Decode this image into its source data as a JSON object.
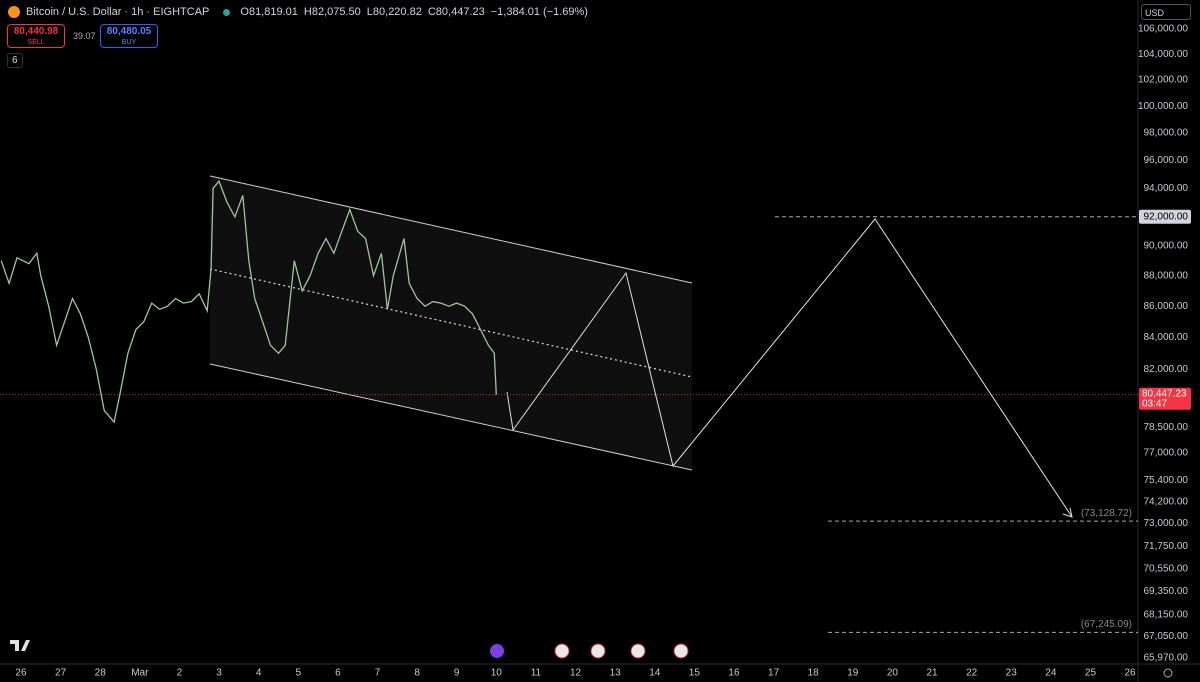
{
  "header": {
    "symbol": "Bitcoin / U.S. Dollar · 1h · EIGHTCAP",
    "open": "O81,819.01",
    "high": "H82,075.50",
    "low": "L80,220.82",
    "close": "C80,447.23",
    "change": "−1,384.01 (−1.69%)",
    "sell_price": "80,440.98",
    "sell": "SELL",
    "spread": "39.07",
    "buy_price": "80,480.05",
    "buy": "BUY",
    "indicators": "6",
    "currency": "USD"
  },
  "chart_data": {
    "type": "line",
    "log": true,
    "grid": false,
    "color": "#9cc79a",
    "x": [
      -0.5,
      -0.3,
      -0.1,
      0.2,
      0.4,
      0.5,
      0.7,
      0.9,
      1.1,
      1.3,
      1.5,
      1.7,
      1.9,
      2.1,
      2.35,
      2.5,
      2.7,
      2.9,
      3.1,
      3.3,
      3.5,
      3.7,
      3.9,
      4.1,
      4.3,
      4.5,
      4.7,
      4.8,
      4.85,
      5.0,
      5.2,
      5.4,
      5.6,
      5.75,
      5.9,
      6.1,
      6.3,
      6.5,
      6.67,
      6.9,
      7.1,
      7.3,
      7.5,
      7.7,
      7.9,
      8.1,
      8.3,
      8.5,
      8.7,
      8.9,
      9.1,
      9.25,
      9.4,
      9.67,
      9.8,
      10.0,
      10.2,
      10.4,
      10.6,
      10.8,
      11.0,
      11.2,
      11.4,
      11.6,
      11.8,
      11.95,
      12.0
    ],
    "values": [
      89000,
      87500,
      89200,
      88800,
      89500,
      88000,
      86000,
      83500,
      85000,
      86500,
      85500,
      84000,
      82000,
      79500,
      78800,
      80500,
      83000,
      84500,
      85000,
      86200,
      85800,
      86000,
      86500,
      86200,
      86300,
      86800,
      85700,
      88500,
      94000,
      94500,
      93000,
      92000,
      93500,
      89000,
      86500,
      85000,
      83500,
      83000,
      83500,
      89000,
      87000,
      88000,
      89500,
      90500,
      89500,
      91000,
      92500,
      91000,
      90500,
      88000,
      89500,
      85800,
      88000,
      90500,
      87500,
      86500,
      86000,
      86300,
      86200,
      86000,
      86200,
      86000,
      85500,
      84500,
      83500,
      83000,
      80447.23
    ],
    "ylim": [
      65660,
      108340
    ],
    "yticks": [
      {
        "value": 106000,
        "label": "106,000.00"
      },
      {
        "value": 104000,
        "label": "104,000.00"
      },
      {
        "value": 102000,
        "label": "102,000.00"
      },
      {
        "value": 100000,
        "label": "100,000.00"
      },
      {
        "value": 98000,
        "label": "98,000.00"
      },
      {
        "value": 96000,
        "label": "96,000.00"
      },
      {
        "value": 94000,
        "label": "94,000.00"
      },
      {
        "value": 90000,
        "label": "90,000.00"
      },
      {
        "value": 88000,
        "label": "88,000.00"
      },
      {
        "value": 86000,
        "label": "86,000.00"
      },
      {
        "value": 84000,
        "label": "84,000.00"
      },
      {
        "value": 82000,
        "label": "82,000.00"
      },
      {
        "value": 78500,
        "label": "78,500.00"
      },
      {
        "value": 77000,
        "label": "77,000.00"
      },
      {
        "value": 75400,
        "label": "75,400.00"
      },
      {
        "value": 74200,
        "label": "74,200.00"
      },
      {
        "value": 73000,
        "label": "73,000.00"
      },
      {
        "value": 71750,
        "label": "71,750.00"
      },
      {
        "value": 70550,
        "label": "70,550.00"
      },
      {
        "value": 69350,
        "label": "69,350.00"
      },
      {
        "value": 68150,
        "label": "68,150.00"
      },
      {
        "value": 67050,
        "label": "67,050.00"
      },
      {
        "value": 65970,
        "label": "65,970.00"
      }
    ],
    "xlim": [
      -0.53,
      28.2
    ],
    "xticks": [
      {
        "value": 0,
        "label": "26"
      },
      {
        "value": 1,
        "label": "27"
      },
      {
        "value": 2,
        "label": "28"
      },
      {
        "value": 3,
        "label": "Mar"
      },
      {
        "value": 4,
        "label": "2"
      },
      {
        "value": 5,
        "label": "3"
      },
      {
        "value": 6,
        "label": "4"
      },
      {
        "value": 7,
        "label": "5"
      },
      {
        "value": 8,
        "label": "6"
      },
      {
        "value": 9,
        "label": "7"
      },
      {
        "value": 10,
        "label": "8"
      },
      {
        "value": 11,
        "label": "9"
      },
      {
        "value": 12,
        "label": "10"
      },
      {
        "value": 13,
        "label": "11"
      },
      {
        "value": 14,
        "label": "12"
      },
      {
        "value": 15,
        "label": "13"
      },
      {
        "value": 16,
        "label": "14"
      },
      {
        "value": 17,
        "label": "15"
      },
      {
        "value": 18,
        "label": "16"
      },
      {
        "value": 19,
        "label": "17"
      },
      {
        "value": 20,
        "label": "18"
      },
      {
        "value": 21,
        "label": "19"
      },
      {
        "value": 22,
        "label": "20"
      },
      {
        "value": 23,
        "label": "21"
      },
      {
        "value": 24,
        "label": "22"
      },
      {
        "value": 25,
        "label": "23"
      },
      {
        "value": 26,
        "label": "24"
      },
      {
        "value": 27,
        "label": "25"
      },
      {
        "value": 28,
        "label": "26"
      }
    ],
    "levels": [
      {
        "value": 80447.23,
        "label": "80,447.23",
        "countdown": "03:47"
      },
      {
        "value": 92000,
        "label": "92,000.00"
      },
      {
        "value": 73128.72,
        "label": "(73,128.72)"
      },
      {
        "value": 67245.09,
        "label": "(67,245.09)"
      }
    ]
  }
}
